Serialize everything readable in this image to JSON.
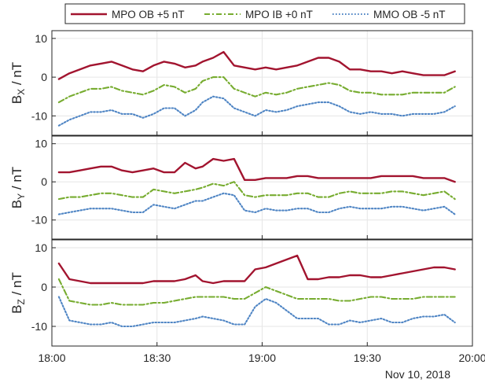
{
  "chart_data": {
    "type": "line",
    "date_label": "Nov 10, 2018",
    "x_tick_labels": [
      "18:00",
      "18:30",
      "19:00",
      "19:30",
      "20:00"
    ],
    "xlim": [
      "18:00",
      "20:00"
    ],
    "grid": true,
    "legend": {
      "placement": "top",
      "entries": [
        "MPO OB +5 nT",
        "MPO IB +0 nT",
        "MMO OB -5 nT"
      ]
    },
    "series_styles": [
      {
        "name": "MPO OB +5 nT",
        "color": "#a2142f",
        "dash": "solid"
      },
      {
        "name": "MPO IB +0 nT",
        "color": "#77ac30",
        "dash": "dash-dot"
      },
      {
        "name": "MMO OB -5 nT",
        "color": "#4f85c4",
        "dash": "dotted"
      }
    ],
    "panels": [
      {
        "ylabel_main": "B",
        "ylabel_sub": "X",
        "ylabel_unit": " / nT",
        "ylim": [
          -15,
          12
        ],
        "y_tick_labels": [
          "10",
          "0",
          "-10"
        ],
        "x": [
          "18:02",
          "18:05",
          "18:08",
          "18:11",
          "18:14",
          "18:17",
          "18:20",
          "18:23",
          "18:26",
          "18:29",
          "18:32",
          "18:35",
          "18:38",
          "18:41",
          "18:43",
          "18:46",
          "18:49",
          "18:52",
          "18:55",
          "18:58",
          "19:01",
          "19:04",
          "19:07",
          "19:10",
          "19:13",
          "19:16",
          "19:19",
          "19:22",
          "19:25",
          "19:28",
          "19:31",
          "19:34",
          "19:37",
          "19:40",
          "19:43",
          "19:46",
          "19:49",
          "19:52",
          "19:55"
        ],
        "series": [
          {
            "name": "MPO OB +5 nT",
            "values": [
              -0.5,
              1,
              2,
              3,
              3.5,
              4,
              3,
              2,
              1.5,
              3,
              4,
              3.5,
              2.5,
              3,
              4,
              5,
              6.5,
              3,
              2.5,
              2,
              2.5,
              2,
              2.5,
              3,
              4,
              5,
              5,
              4,
              2,
              2,
              1.5,
              1.5,
              1,
              1.5,
              1,
              0.5,
              0.5,
              0.5,
              1.5
            ]
          },
          {
            "name": "MPO IB +0 nT",
            "values": [
              -6.5,
              -5,
              -4,
              -3,
              -3,
              -2.5,
              -3.5,
              -4,
              -4.5,
              -3.5,
              -2,
              -2.5,
              -4,
              -3,
              -1,
              0,
              0,
              -3,
              -4,
              -5,
              -4,
              -4.5,
              -4,
              -3,
              -2.5,
              -2,
              -1.5,
              -2,
              -3.5,
              -4,
              -4,
              -4.5,
              -4.5,
              -4.5,
              -4,
              -4,
              -4,
              -4,
              -2.5
            ]
          },
          {
            "name": "MMO OB -5 nT",
            "values": [
              -12.5,
              -11,
              -10,
              -9,
              -9,
              -8.5,
              -9.5,
              -9.5,
              -10.5,
              -9.5,
              -8,
              -8,
              -10,
              -8.5,
              -6.5,
              -5,
              -5.5,
              -8,
              -9,
              -10,
              -8.5,
              -9,
              -8.5,
              -7.5,
              -7,
              -6.5,
              -6.5,
              -7.5,
              -9,
              -9.5,
              -9,
              -9.5,
              -9.5,
              -10,
              -9.5,
              -9.5,
              -9.5,
              -9,
              -7.5
            ]
          }
        ]
      },
      {
        "ylabel_main": "B",
        "ylabel_sub": "Y",
        "ylabel_unit": " / nT",
        "ylim": [
          -15,
          12
        ],
        "y_tick_labels": [
          "10",
          "0",
          "-10"
        ],
        "x": [
          "18:02",
          "18:05",
          "18:08",
          "18:11",
          "18:14",
          "18:17",
          "18:20",
          "18:23",
          "18:26",
          "18:29",
          "18:32",
          "18:35",
          "18:38",
          "18:41",
          "18:43",
          "18:46",
          "18:49",
          "18:52",
          "18:55",
          "18:58",
          "19:01",
          "19:04",
          "19:07",
          "19:10",
          "19:13",
          "19:16",
          "19:19",
          "19:22",
          "19:25",
          "19:28",
          "19:31",
          "19:34",
          "19:37",
          "19:40",
          "19:43",
          "19:46",
          "19:49",
          "19:52",
          "19:55"
        ],
        "series": [
          {
            "name": "MPO OB +5 nT",
            "values": [
              2.5,
              2.5,
              3,
              3.5,
              4,
              4,
              3,
              2.5,
              3,
              3.5,
              2.5,
              2.5,
              5,
              3.5,
              4,
              6,
              5.5,
              6,
              0.5,
              0.5,
              1,
              1,
              1,
              1.5,
              1.5,
              1,
              1,
              1,
              1,
              1,
              1,
              1.5,
              1.5,
              1.5,
              1.5,
              1,
              1,
              1,
              0
            ]
          },
          {
            "name": "MPO IB +0 nT",
            "values": [
              -4.5,
              -4,
              -4,
              -3.5,
              -3,
              -3,
              -3.5,
              -4,
              -4,
              -2,
              -2.5,
              -3,
              -2.5,
              -2,
              -1.5,
              -0.5,
              -1,
              0,
              -3.5,
              -4,
              -3.5,
              -3.5,
              -3.5,
              -3,
              -3,
              -4,
              -4,
              -3,
              -2.5,
              -3,
              -3,
              -3,
              -2.5,
              -2.5,
              -3,
              -3.5,
              -3,
              -2.5,
              -4.5
            ]
          },
          {
            "name": "MMO OB -5 nT",
            "values": [
              -8.5,
              -8,
              -7.5,
              -7,
              -7,
              -7,
              -7.5,
              -8,
              -8,
              -6,
              -6.5,
              -7,
              -6,
              -5,
              -5,
              -4,
              -3,
              -3.5,
              -7.5,
              -8,
              -7,
              -7.5,
              -7.5,
              -7,
              -7,
              -8,
              -8,
              -7,
              -6.5,
              -7,
              -7,
              -7,
              -6.5,
              -6.5,
              -7,
              -7.5,
              -7,
              -6.5,
              -8.5
            ]
          }
        ]
      },
      {
        "ylabel_main": "B",
        "ylabel_sub": "Z",
        "ylabel_unit": " / nT",
        "ylim": [
          -15,
          12
        ],
        "y_tick_labels": [
          "10",
          "0",
          "-10"
        ],
        "x": [
          "18:02",
          "18:05",
          "18:08",
          "18:11",
          "18:14",
          "18:17",
          "18:20",
          "18:23",
          "18:26",
          "18:29",
          "18:32",
          "18:35",
          "18:38",
          "18:41",
          "18:43",
          "18:46",
          "18:49",
          "18:52",
          "18:55",
          "18:58",
          "19:01",
          "19:04",
          "19:07",
          "19:10",
          "19:13",
          "19:16",
          "19:19",
          "19:22",
          "19:25",
          "19:28",
          "19:31",
          "19:34",
          "19:37",
          "19:40",
          "19:43",
          "19:46",
          "19:49",
          "19:52",
          "19:55"
        ],
        "series": [
          {
            "name": "MPO OB +5 nT",
            "values": [
              6,
              2,
              1.5,
              1,
              1,
              1,
              1,
              1,
              1,
              1.5,
              1.5,
              1.5,
              2,
              3,
              1.5,
              1,
              1.5,
              1.5,
              1.5,
              4.5,
              5,
              6,
              7,
              8,
              2,
              2,
              2.5,
              2.5,
              3,
              3,
              2.5,
              2.5,
              3,
              3.5,
              4,
              4.5,
              5,
              5,
              4.5
            ]
          },
          {
            "name": "MPO IB +0 nT",
            "values": [
              2,
              -3.5,
              -4,
              -4.5,
              -4.5,
              -4,
              -4.5,
              -4.5,
              -4.5,
              -4,
              -4,
              -3.5,
              -3,
              -2.5,
              -2.5,
              -2.5,
              -2.5,
              -3,
              -3,
              -1.5,
              0,
              -1,
              -2,
              -3,
              -3,
              -3,
              -3,
              -3.5,
              -3.5,
              -3,
              -2.5,
              -2.5,
              -3,
              -3,
              -3,
              -2.5,
              -2.5,
              -2.5,
              -2.5
            ]
          },
          {
            "name": "MMO OB -5 nT",
            "values": [
              -2.5,
              -8.5,
              -9,
              -9.5,
              -9.5,
              -9,
              -10,
              -10,
              -9.5,
              -9,
              -9,
              -9,
              -8.5,
              -8,
              -7.5,
              -8,
              -8.5,
              -9.5,
              -9.5,
              -5,
              -3,
              -4,
              -6,
              -8,
              -8,
              -8,
              -9.5,
              -9.5,
              -8.5,
              -9,
              -8.5,
              -8,
              -9,
              -9,
              -8,
              -7.5,
              -7.5,
              -7,
              -9
            ]
          }
        ]
      }
    ]
  }
}
